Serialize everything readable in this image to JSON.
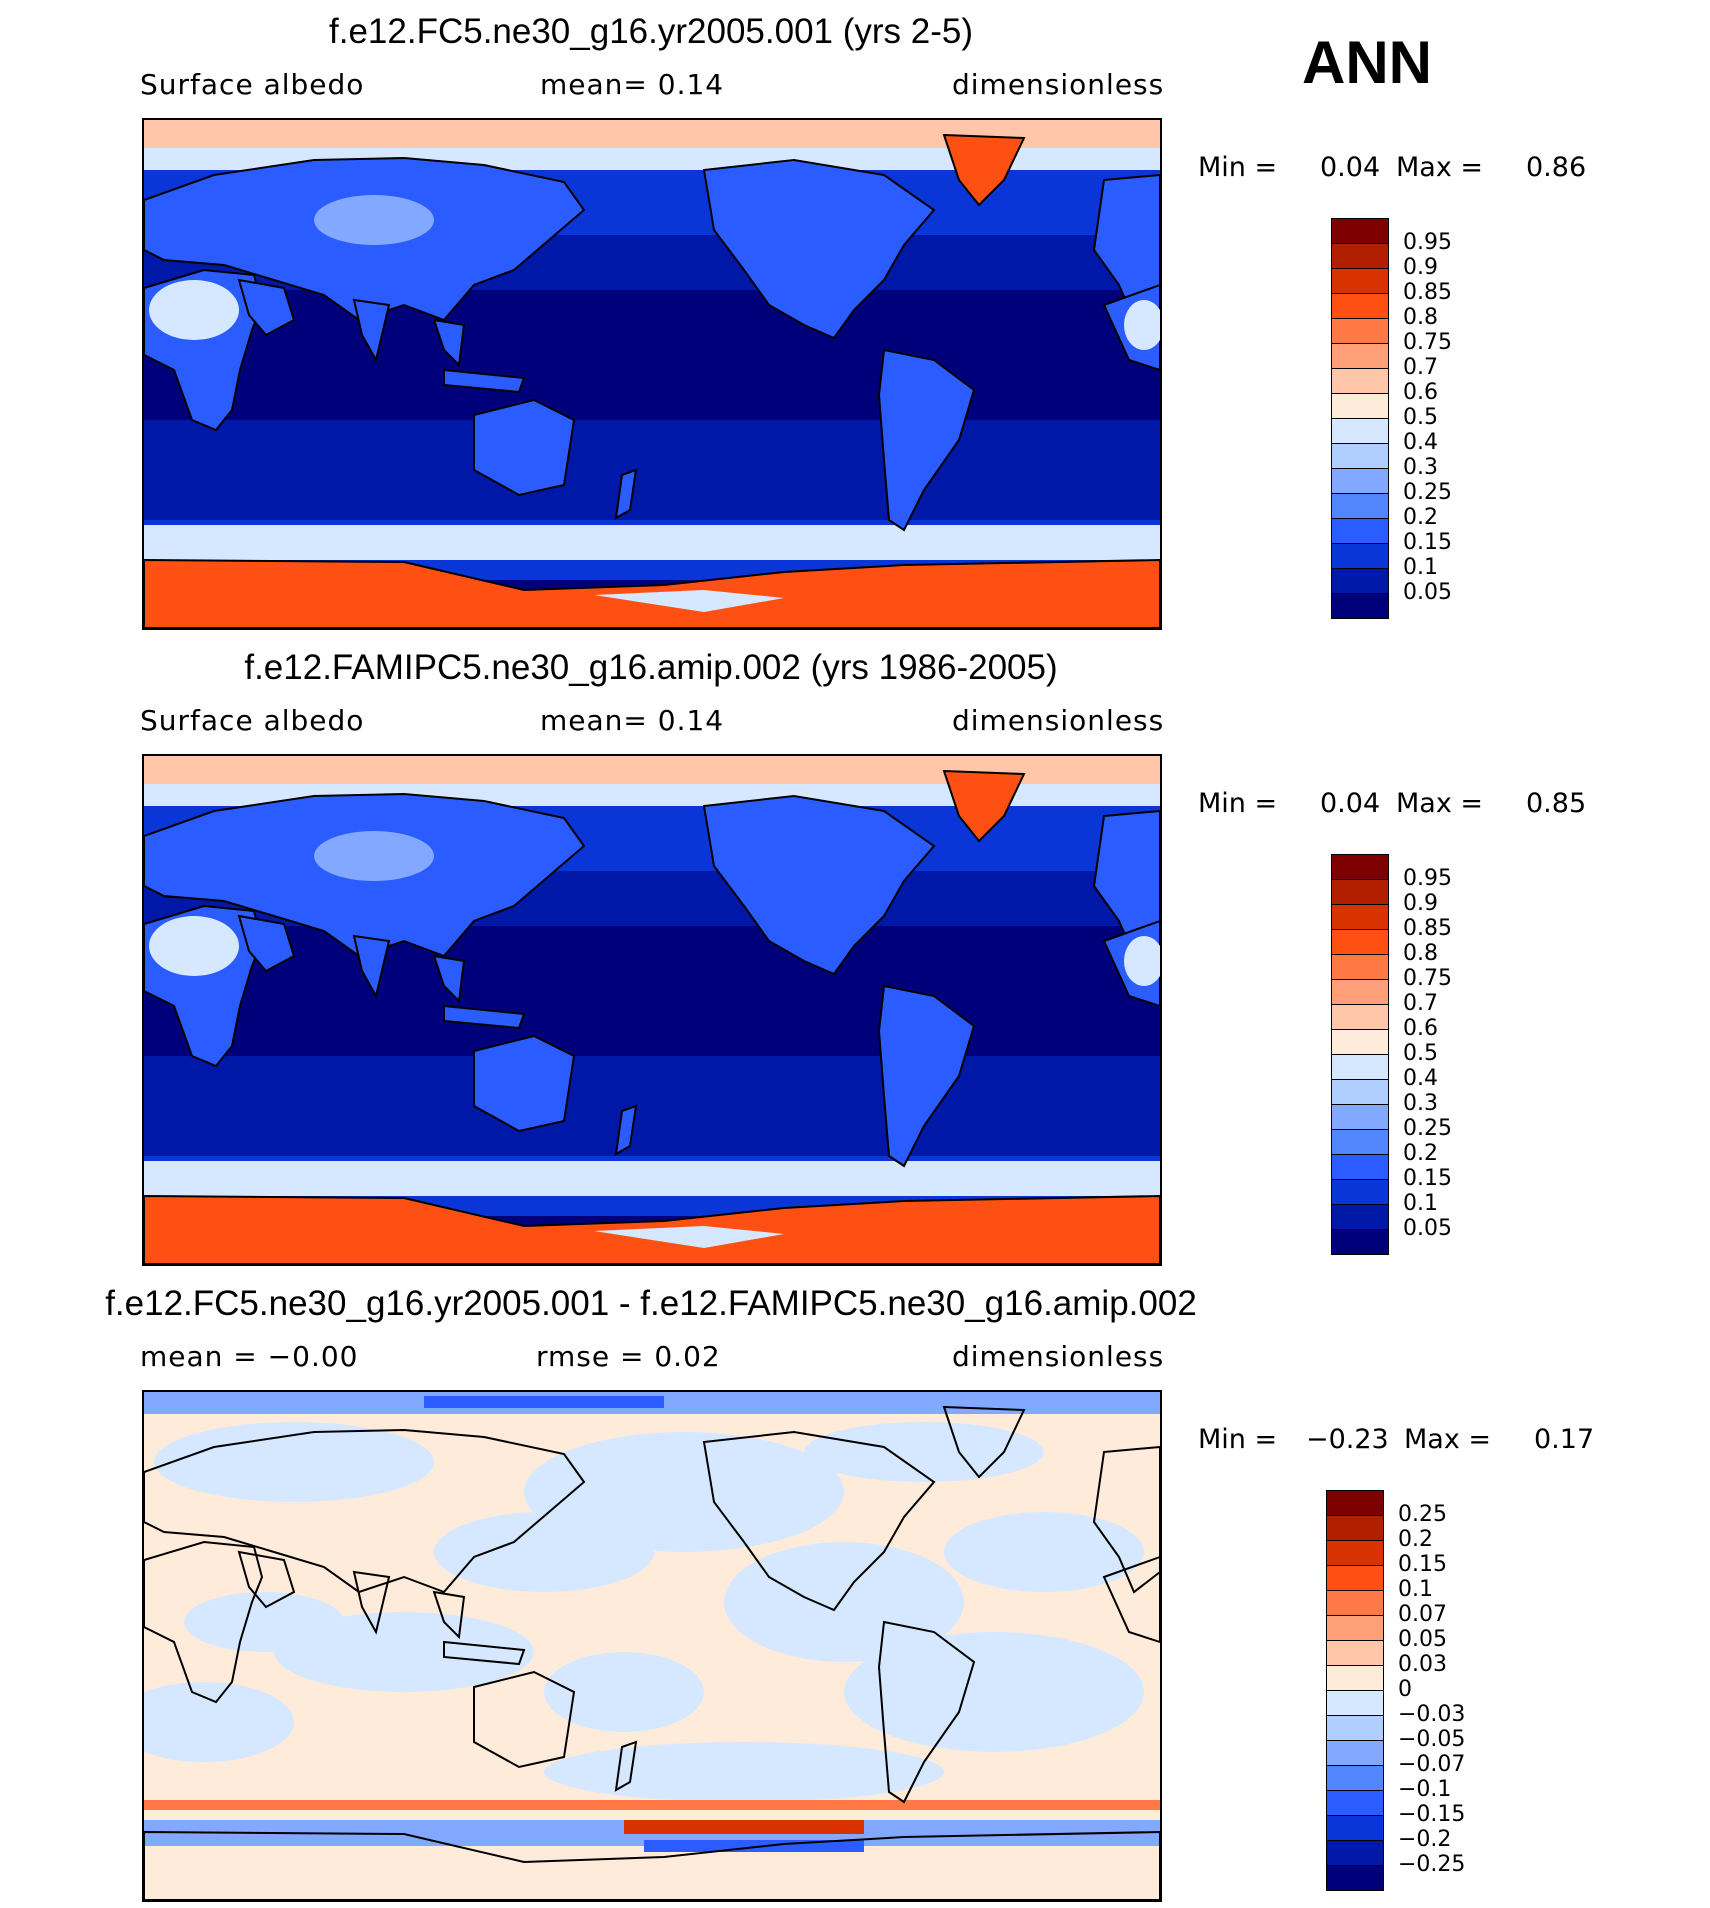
{
  "season": "ANN",
  "panels": [
    {
      "title": "f.e12.FC5.ne30_g16.yr2005.001 (yrs 2-5)",
      "left_label": "Surface albedo",
      "middle_label": "mean=    0.14",
      "right_label": "dimensionless",
      "min_label": "Min  =",
      "min_value": "0.04",
      "max_label": "Max  =",
      "max_value": "0.86",
      "colorbar": {
        "labels": [
          "0.95",
          "0.9",
          "0.85",
          "0.8",
          "0.75",
          "0.7",
          "0.6",
          "0.5",
          "0.4",
          "0.3",
          "0.25",
          "0.2",
          "0.15",
          "0.1",
          "0.05"
        ],
        "colors": [
          "#7f0000",
          "#b21e00",
          "#d83200",
          "#ff5014",
          "#ff7846",
          "#ff9f78",
          "#ffc6aa",
          "#ffebd9",
          "#d6e8ff",
          "#b0ceff",
          "#82a8ff",
          "#5286ff",
          "#2a5cff",
          "#0a36d8",
          "#0018a8",
          "#00007a"
        ]
      },
      "palette": {
        "deep": "#00007a",
        "ocean": "#0018a8",
        "mid": "#0a36d8",
        "land": "#2a5cff",
        "light": "#82a8ff",
        "pale": "#d6e8ff",
        "ice": "#ff5014",
        "snow": "#ffc6aa"
      }
    },
    {
      "title": "f.e12.FAMIPC5.ne30_g16.amip.002 (yrs 1986-2005)",
      "left_label": "Surface albedo",
      "middle_label": "mean=    0.14",
      "right_label": "dimensionless",
      "min_label": "Min  =",
      "min_value": "0.04",
      "max_label": "Max  =",
      "max_value": "0.85",
      "colorbar": {
        "labels": [
          "0.95",
          "0.9",
          "0.85",
          "0.8",
          "0.75",
          "0.7",
          "0.6",
          "0.5",
          "0.4",
          "0.3",
          "0.25",
          "0.2",
          "0.15",
          "0.1",
          "0.05"
        ],
        "colors": [
          "#7f0000",
          "#b21e00",
          "#d83200",
          "#ff5014",
          "#ff7846",
          "#ff9f78",
          "#ffc6aa",
          "#ffebd9",
          "#d6e8ff",
          "#b0ceff",
          "#82a8ff",
          "#5286ff",
          "#2a5cff",
          "#0a36d8",
          "#0018a8",
          "#00007a"
        ]
      },
      "palette": {
        "deep": "#00007a",
        "ocean": "#0018a8",
        "mid": "#0a36d8",
        "land": "#2a5cff",
        "light": "#82a8ff",
        "pale": "#d6e8ff",
        "ice": "#ff5014",
        "snow": "#ffc6aa"
      }
    },
    {
      "title": "f.e12.FC5.ne30_g16.yr2005.001 - f.e12.FAMIPC5.ne30_g16.amip.002",
      "left_label": "mean =   −0.00",
      "middle_label": "rmse =    0.02",
      "right_label": "dimensionless",
      "min_label": "Min  =",
      "min_value": "−0.23",
      "max_label": "Max  =",
      "max_value": "0.17",
      "colorbar": {
        "labels": [
          "0.25",
          "0.2",
          "0.15",
          "0.1",
          "0.07",
          "0.05",
          "0.03",
          "0",
          "−0.03",
          "−0.05",
          "−0.07",
          "−0.1",
          "−0.15",
          "−0.2",
          "−0.25"
        ],
        "colors": [
          "#7f0000",
          "#b21e00",
          "#d83200",
          "#ff5014",
          "#ff7846",
          "#ff9f78",
          "#ffc6aa",
          "#ffebd9",
          "#d6e8ff",
          "#b0ceff",
          "#82a8ff",
          "#5286ff",
          "#2a5cff",
          "#0a36d8",
          "#0018a8",
          "#00007a"
        ]
      },
      "palette": {
        "neg": "#d6e8ff",
        "pos": "#ffebd9",
        "neg2": "#82a8ff",
        "neg3": "#2a5cff",
        "pos2": "#ff7846",
        "pos3": "#d83200"
      }
    }
  ]
}
